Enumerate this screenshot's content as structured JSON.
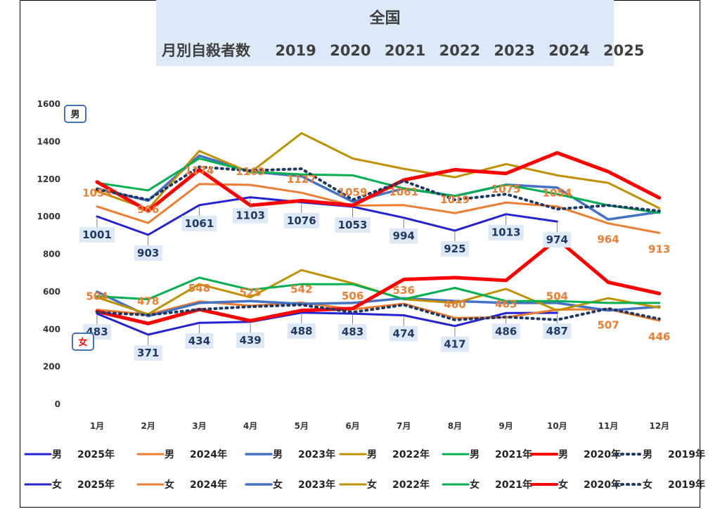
{
  "title": {
    "line1": "全国",
    "line2_label": "月別自殺者数",
    "years": [
      "2019",
      "2020",
      "2021",
      "2022",
      "2023",
      "2024",
      "2025"
    ]
  },
  "badges": {
    "male": "男",
    "female": "女"
  },
  "chart_data": {
    "type": "line",
    "categories": [
      "1月",
      "2月",
      "3月",
      "4月",
      "5月",
      "6月",
      "7月",
      "8月",
      "9月",
      "10月",
      "11月",
      "12月"
    ],
    "ylim": [
      0,
      1600
    ],
    "yticks": [
      0,
      200,
      400,
      600,
      800,
      1000,
      1200,
      1400,
      1600
    ],
    "grid": false,
    "legend_position": "bottom",
    "series": [
      {
        "name": "男　2025年",
        "gender": "男",
        "year": "2025年",
        "color": "#2323d2",
        "width": 3,
        "dash": "",
        "values": [
          1001,
          903,
          1061,
          1103,
          1076,
          1053,
          994,
          925,
          1013,
          974,
          null,
          null
        ],
        "labels": true
      },
      {
        "name": "男　2024年",
        "gender": "男",
        "year": "2024年",
        "color": "#ed7d31",
        "width": 3,
        "dash": "",
        "values": [
          1054,
          966,
          1174,
          1169,
          1127,
          1059,
          1061,
          1019,
          1075,
          1054,
          964,
          913
        ],
        "labels": true
      },
      {
        "name": "男　2023年",
        "gender": "男",
        "year": "2023年",
        "color": "#4472c4",
        "width": 3.5,
        "dash": "",
        "values": [
          1150,
          1085,
          1325,
          1240,
          1215,
          1080,
          1150,
          1110,
          1170,
          1155,
          985,
          1025
        ],
        "labels": false
      },
      {
        "name": "男　2022年",
        "gender": "男",
        "year": "2022年",
        "color": "#bf9000",
        "width": 3,
        "dash": "",
        "values": [
          1135,
          1040,
          1350,
          1235,
          1445,
          1310,
          1255,
          1210,
          1280,
          1220,
          1180,
          1045
        ],
        "labels": false
      },
      {
        "name": "男　2021年",
        "gender": "男",
        "year": "2021年",
        "color": "#00b050",
        "width": 3,
        "dash": "",
        "values": [
          1180,
          1140,
          1310,
          1240,
          1225,
          1220,
          1150,
          1110,
          1170,
          1120,
          1060,
          1020
        ],
        "labels": false
      },
      {
        "name": "男　2020年",
        "gender": "男",
        "year": "2020年",
        "color": "#ff0000",
        "width": 5,
        "dash": "",
        "values": [
          1185,
          1030,
          1250,
          1060,
          1085,
          1060,
          1195,
          1250,
          1230,
          1340,
          1240,
          1100
        ],
        "labels": false
      },
      {
        "name": "男　2019年",
        "gender": "男",
        "year": "2019年",
        "color": "#203864",
        "width": 4,
        "dash": "2 6",
        "values": [
          1145,
          1090,
          1265,
          1245,
          1255,
          1090,
          1190,
          1090,
          1120,
          1040,
          1060,
          1030
        ],
        "labels": false
      },
      {
        "name": "女　2025年",
        "gender": "女",
        "year": "2025年",
        "color": "#2323d2",
        "width": 3,
        "dash": "",
        "values": [
          483,
          371,
          434,
          439,
          488,
          483,
          474,
          417,
          486,
          487,
          null,
          null
        ],
        "labels": true
      },
      {
        "name": "女　2024年",
        "gender": "女",
        "year": "2024年",
        "color": "#ed7d31",
        "width": 3,
        "dash": "",
        "values": [
          504,
          478,
          548,
          525,
          542,
          506,
          536,
          460,
          463,
          504,
          507,
          446
        ],
        "labels": true
      },
      {
        "name": "女　2023年",
        "gender": "女",
        "year": "2023年",
        "color": "#4472c4",
        "width": 3.5,
        "dash": "",
        "values": [
          600,
          470,
          540,
          550,
          535,
          540,
          565,
          550,
          540,
          540,
          500,
          520
        ],
        "labels": false
      },
      {
        "name": "女　2022年",
        "gender": "女",
        "year": "2022年",
        "color": "#bf9000",
        "width": 3,
        "dash": "",
        "values": [
          570,
          480,
          640,
          570,
          715,
          645,
          560,
          540,
          615,
          500,
          565,
          515
        ],
        "labels": false
      },
      {
        "name": "女　2021年",
        "gender": "女",
        "year": "2021年",
        "color": "#00b050",
        "width": 3,
        "dash": "",
        "values": [
          575,
          560,
          675,
          610,
          640,
          640,
          560,
          620,
          550,
          550,
          540,
          540
        ],
        "labels": false
      },
      {
        "name": "女　2020年",
        "gender": "女",
        "year": "2020年",
        "color": "#ff0000",
        "width": 5,
        "dash": "",
        "values": [
          495,
          430,
          505,
          445,
          500,
          510,
          665,
          675,
          660,
          880,
          650,
          590
        ],
        "labels": false
      },
      {
        "name": "女　2019年",
        "gender": "女",
        "year": "2019年",
        "color": "#203864",
        "width": 4,
        "dash": "2 6",
        "values": [
          490,
          475,
          505,
          520,
          530,
          490,
          530,
          450,
          465,
          450,
          510,
          455
        ],
        "labels": false
      }
    ]
  }
}
